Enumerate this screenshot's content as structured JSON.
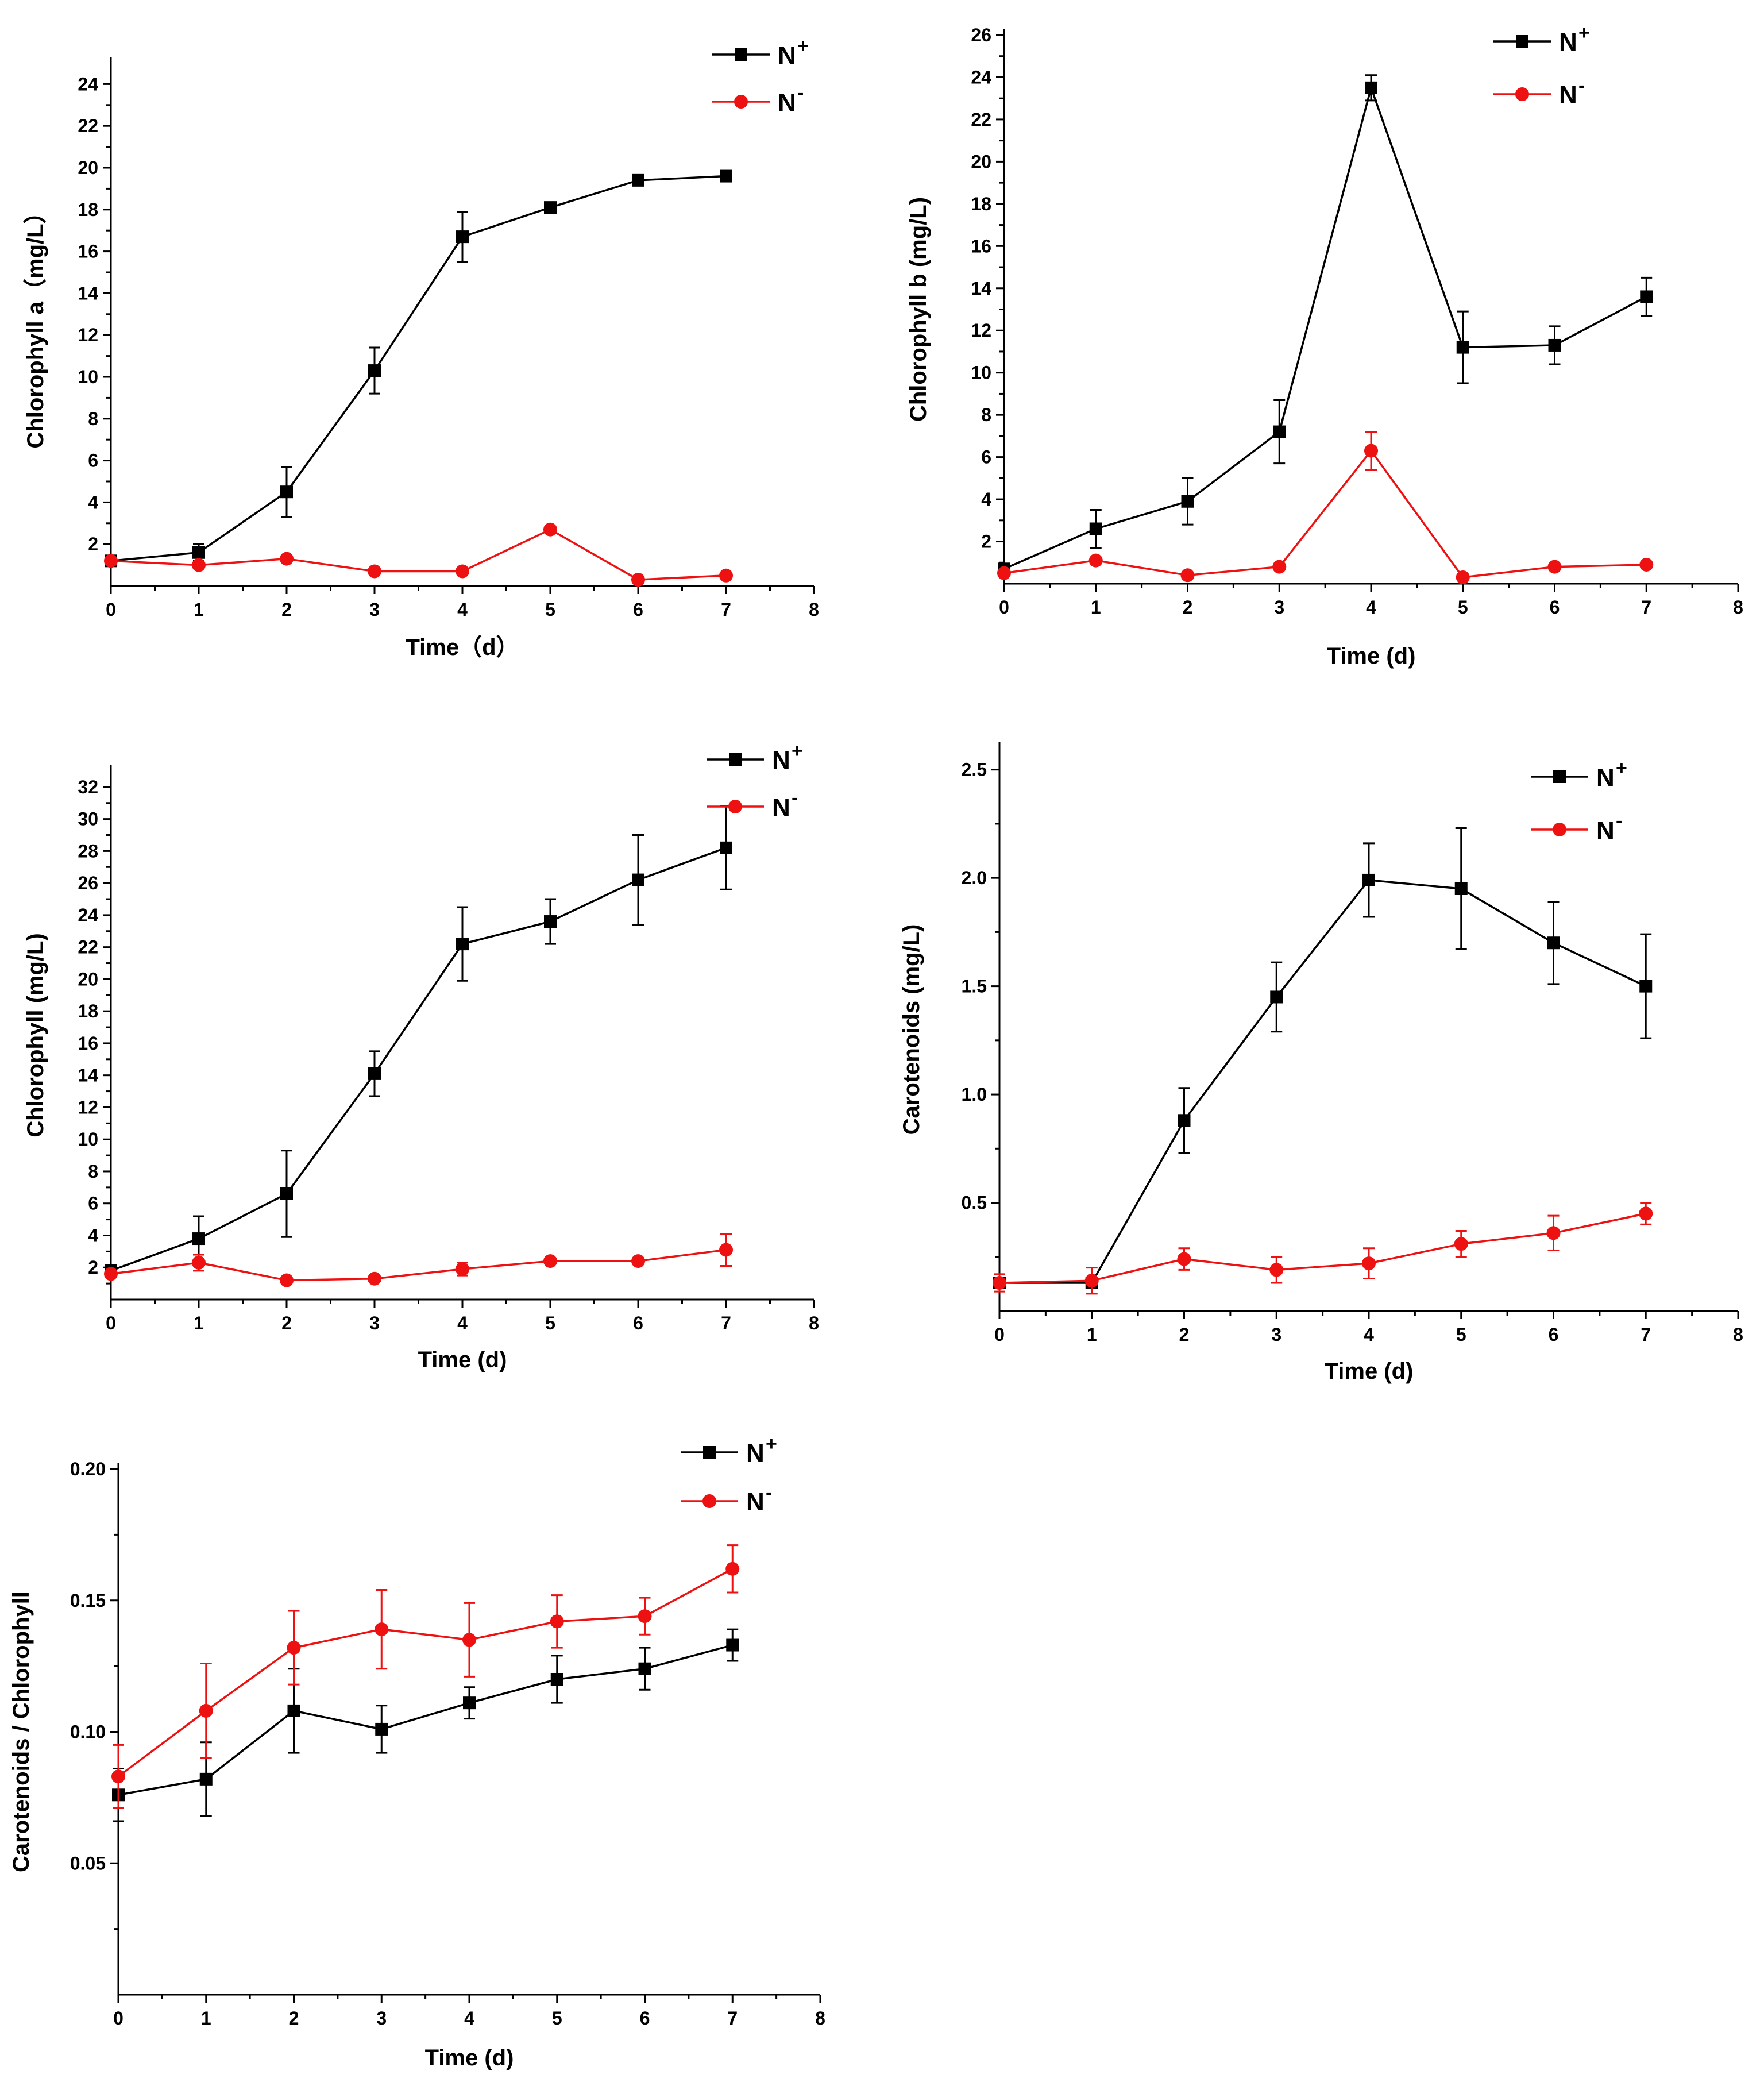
{
  "colors": {
    "n_plus": "#000000",
    "n_minus": "#ee1111"
  },
  "legend": {
    "base": "N",
    "plus_sup": "+",
    "minus_sup": "-"
  },
  "chart_data": [
    {
      "id": "chl-a",
      "type": "line",
      "title": "",
      "xlabel": "Time（d）",
      "ylabel": "Chlorophyll a（mg/L）",
      "xlim": [
        0,
        8
      ],
      "ylim": [
        0,
        25
      ],
      "xticks": [
        0,
        1,
        2,
        3,
        4,
        5,
        6,
        7,
        8
      ],
      "yticks": [
        2,
        4,
        6,
        8,
        10,
        12,
        14,
        16,
        18,
        20,
        22,
        24
      ],
      "ytick_labels": [
        "2",
        "4",
        "6",
        "8",
        "10",
        "12",
        "14",
        "16",
        "18",
        "20",
        "22",
        "24"
      ],
      "x": [
        0,
        1,
        2,
        3,
        4,
        5,
        6,
        7
      ],
      "series": [
        {
          "name": "N+",
          "color": "#000000",
          "marker": "square",
          "values": [
            1.2,
            1.6,
            4.5,
            10.3,
            16.7,
            18.1,
            19.4,
            19.6
          ],
          "errors": [
            0.1,
            0.4,
            1.2,
            1.1,
            1.2,
            0.2,
            0.2,
            0.2
          ]
        },
        {
          "name": "N-",
          "color": "#ee1111",
          "marker": "circle",
          "values": [
            1.2,
            1.0,
            1.3,
            0.7,
            0.7,
            2.7,
            0.3,
            0.5
          ],
          "errors": [
            0.1,
            0.1,
            0.1,
            0.1,
            0.1,
            0.1,
            0.1,
            0.1
          ]
        }
      ]
    },
    {
      "id": "chl-b",
      "type": "line",
      "title": "",
      "xlabel": "Time (d)",
      "ylabel": "Chlorophyll b (mg/L)",
      "xlim": [
        0,
        8
      ],
      "ylim": [
        0,
        26
      ],
      "xticks": [
        0,
        1,
        2,
        3,
        4,
        5,
        6,
        7,
        8
      ],
      "yticks": [
        2,
        4,
        6,
        8,
        10,
        12,
        14,
        16,
        18,
        20,
        22,
        24,
        26
      ],
      "ytick_labels": [
        "2",
        "4",
        "6",
        "8",
        "10",
        "12",
        "14",
        "16",
        "18",
        "20",
        "22",
        "24",
        "26"
      ],
      "x": [
        0,
        1,
        2,
        3,
        4,
        5,
        6,
        7
      ],
      "series": [
        {
          "name": "N+",
          "color": "#000000",
          "marker": "square",
          "values": [
            0.7,
            2.6,
            3.9,
            7.2,
            23.5,
            11.2,
            11.3,
            13.6
          ],
          "errors": [
            0.1,
            0.9,
            1.1,
            1.5,
            0.6,
            1.7,
            0.9,
            0.9
          ]
        },
        {
          "name": "N-",
          "color": "#ee1111",
          "marker": "circle",
          "values": [
            0.5,
            1.1,
            0.4,
            0.8,
            6.3,
            0.3,
            0.8,
            0.9
          ],
          "errors": [
            0.1,
            0.1,
            0.1,
            0.1,
            0.9,
            0.1,
            0.1,
            0.1
          ]
        }
      ]
    },
    {
      "id": "chl-total",
      "type": "line",
      "title": "",
      "xlabel": "Time (d)",
      "ylabel": "Chlorophyll (mg/L)",
      "xlim": [
        0,
        8
      ],
      "ylim": [
        0,
        33
      ],
      "xticks": [
        0,
        1,
        2,
        3,
        4,
        5,
        6,
        7,
        8
      ],
      "yticks": [
        2,
        4,
        6,
        8,
        10,
        12,
        14,
        16,
        18,
        20,
        22,
        24,
        26,
        28,
        30,
        32
      ],
      "ytick_labels": [
        "2",
        "4",
        "6",
        "8",
        "10",
        "12",
        "14",
        "16",
        "18",
        "20",
        "22",
        "24",
        "26",
        "28",
        "30",
        "32"
      ],
      "x": [
        0,
        1,
        2,
        3,
        4,
        5,
        6,
        7
      ],
      "series": [
        {
          "name": "N+",
          "color": "#000000",
          "marker": "square",
          "values": [
            1.8,
            3.8,
            6.6,
            14.1,
            22.2,
            23.6,
            26.2,
            28.2
          ],
          "errors": [
            0.1,
            1.4,
            2.7,
            1.4,
            2.3,
            1.4,
            2.8,
            2.6
          ]
        },
        {
          "name": "N-",
          "color": "#ee1111",
          "marker": "circle",
          "values": [
            1.6,
            2.3,
            1.2,
            1.3,
            1.9,
            2.4,
            2.4,
            3.1
          ],
          "errors": [
            0.1,
            0.5,
            0.1,
            0.1,
            0.4,
            0.1,
            0.1,
            1.0
          ]
        }
      ]
    },
    {
      "id": "carotenoids",
      "type": "line",
      "title": "",
      "xlabel": "Time (d)",
      "ylabel": "Carotenoids (mg/L)",
      "xlim": [
        0,
        8
      ],
      "ylim": [
        0,
        2.6
      ],
      "xticks": [
        0,
        1,
        2,
        3,
        4,
        5,
        6,
        7,
        8
      ],
      "yticks": [
        0.5,
        1.0,
        1.5,
        2.0,
        2.5
      ],
      "ytick_labels": [
        "0.5",
        "1.0",
        "1.5",
        "2.0",
        "2.5"
      ],
      "x": [
        0,
        1,
        2,
        3,
        4,
        5,
        6,
        7
      ],
      "series": [
        {
          "name": "N+",
          "color": "#000000",
          "marker": "square",
          "values": [
            0.13,
            0.13,
            0.88,
            1.45,
            1.99,
            1.95,
            1.7,
            1.5
          ],
          "errors": [
            0.02,
            0.02,
            0.15,
            0.16,
            0.17,
            0.28,
            0.19,
            0.24
          ]
        },
        {
          "name": "N-",
          "color": "#ee1111",
          "marker": "circle",
          "values": [
            0.13,
            0.14,
            0.24,
            0.19,
            0.22,
            0.31,
            0.36,
            0.45
          ],
          "errors": [
            0.04,
            0.06,
            0.05,
            0.06,
            0.07,
            0.06,
            0.08,
            0.05
          ]
        }
      ]
    },
    {
      "id": "ratio",
      "type": "line",
      "title": "",
      "xlabel": "Time (d)",
      "ylabel": "Carotenoids / Chlorophyll",
      "xlim": [
        0,
        8
      ],
      "ylim": [
        0,
        0.2
      ],
      "xticks": [
        0,
        1,
        2,
        3,
        4,
        5,
        6,
        7,
        8
      ],
      "yticks": [
        0.05,
        0.1,
        0.15,
        0.2
      ],
      "ytick_labels": [
        "0.05",
        "0.10",
        "0.15",
        "0.20"
      ],
      "x": [
        0,
        1,
        2,
        3,
        4,
        5,
        6,
        7
      ],
      "series": [
        {
          "name": "N+",
          "color": "#000000",
          "marker": "square",
          "values": [
            0.076,
            0.082,
            0.108,
            0.101,
            0.111,
            0.12,
            0.124,
            0.133
          ],
          "errors": [
            0.01,
            0.014,
            0.016,
            0.009,
            0.006,
            0.009,
            0.008,
            0.006
          ]
        },
        {
          "name": "N-",
          "color": "#ee1111",
          "marker": "circle",
          "values": [
            0.083,
            0.108,
            0.132,
            0.139,
            0.135,
            0.142,
            0.144,
            0.162
          ],
          "errors": [
            0.012,
            0.018,
            0.014,
            0.015,
            0.014,
            0.01,
            0.007,
            0.009
          ]
        }
      ]
    }
  ]
}
